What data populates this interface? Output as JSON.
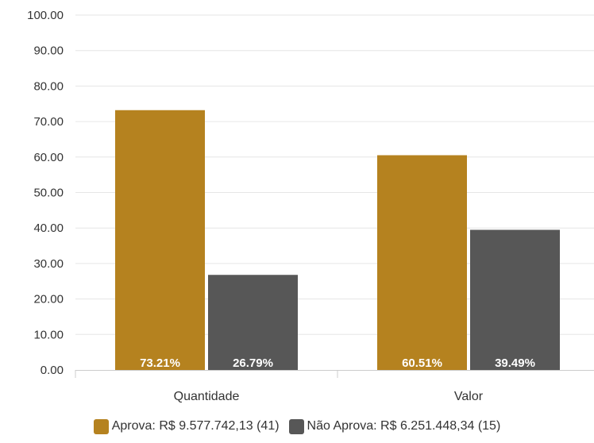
{
  "chart_data": {
    "type": "bar",
    "categories": [
      "Quantidade",
      "Valor"
    ],
    "series": [
      {
        "name": "Aprova: R$ 9.577.742,13 (41)",
        "color": "#B5821F",
        "values": [
          73.21,
          60.51
        ],
        "labels": [
          "73.21%",
          "60.51%"
        ]
      },
      {
        "name": "Não Aprova: R$ 6.251.448,34 (15)",
        "color": "#575757",
        "values": [
          26.79,
          39.49
        ],
        "labels": [
          "26.79%",
          "39.49%"
        ]
      }
    ],
    "yticks": [
      "0.00",
      "10.00",
      "20.00",
      "30.00",
      "40.00",
      "50.00",
      "60.00",
      "70.00",
      "80.00",
      "90.00",
      "100.00"
    ],
    "ylim": [
      0,
      100
    ],
    "grid": true,
    "legend_position": "bottom-center",
    "title": "",
    "xlabel": "",
    "ylabel": ""
  }
}
